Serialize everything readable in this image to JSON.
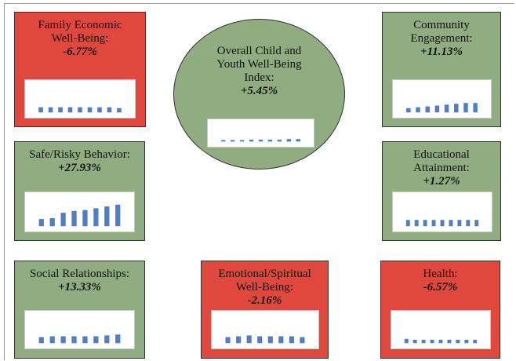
{
  "panels": {
    "family": {
      "title_line1": "Family Economic",
      "title_line2": "Well-Being:",
      "pct": "-6.77%",
      "color": "#e0473d",
      "chart_data": {
        "type": "bar",
        "values": [
          6,
          6,
          6,
          6,
          6,
          6,
          6,
          6,
          5
        ]
      }
    },
    "community": {
      "title_line1": "Community",
      "title_line2": "Engagement:",
      "pct": "+11.13%",
      "color": "#8fad80",
      "chart_data": {
        "type": "bar",
        "values": [
          5,
          6,
          7,
          8,
          9,
          10,
          11,
          11
        ]
      }
    },
    "overall": {
      "title_line1": "Overall Child and",
      "title_line2": "Youth Well-Being",
      "title_line3": "Index:",
      "pct": "+5.45%",
      "color": "#8fad80",
      "chart_data": {
        "type": "bar",
        "values": [
          1,
          2,
          2,
          3,
          3,
          3,
          3,
          4,
          4
        ]
      }
    },
    "safe": {
      "title_line1": "Safe/Risky Behavior:",
      "pct": "+27.93%",
      "color": "#8fad80",
      "chart_data": {
        "type": "bar",
        "values": [
          8,
          9,
          15,
          17,
          18,
          20,
          22,
          24
        ]
      }
    },
    "edu": {
      "title_line1": "Educational",
      "title_line2": "Attainment:",
      "pct": "+1.27%",
      "color": "#8fad80",
      "chart_data": {
        "type": "bar",
        "values": [
          7,
          7,
          7,
          7,
          7,
          7,
          7,
          7,
          7
        ]
      }
    },
    "social": {
      "title_line1": "Social Relationships:",
      "pct": "+13.33%",
      "color": "#8fad80",
      "chart_data": {
        "type": "bar",
        "values": [
          7,
          8,
          8,
          8,
          8,
          8,
          9,
          10
        ]
      }
    },
    "emotional": {
      "title_line1": "Emotional/Spiritual",
      "title_line2": "Well-Being:",
      "pct": "-2.16%",
      "color": "#e0473d",
      "chart_data": {
        "type": "bar",
        "values": [
          7,
          8,
          9,
          8,
          8,
          8,
          8,
          7
        ]
      }
    },
    "health": {
      "title_line1": "Health:",
      "pct": "-6.57%",
      "color": "#e0473d",
      "chart_data": {
        "type": "bar",
        "values": [
          5,
          4,
          4,
          4,
          4,
          4,
          4,
          4,
          4
        ]
      }
    }
  },
  "bar_color": "#4f7fc2"
}
